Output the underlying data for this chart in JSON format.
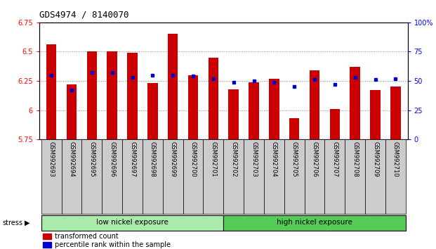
{
  "title": "GDS4974 / 8140070",
  "samples": [
    "GSM992693",
    "GSM992694",
    "GSM992695",
    "GSM992696",
    "GSM992697",
    "GSM992698",
    "GSM992699",
    "GSM992700",
    "GSM992701",
    "GSM992702",
    "GSM992703",
    "GSM992704",
    "GSM992705",
    "GSM992706",
    "GSM992707",
    "GSM992708",
    "GSM992709",
    "GSM992710"
  ],
  "red_values": [
    6.56,
    6.22,
    6.5,
    6.5,
    6.49,
    6.23,
    6.65,
    6.3,
    6.45,
    6.18,
    6.24,
    6.27,
    5.93,
    6.34,
    6.01,
    6.37,
    6.17,
    6.2
  ],
  "blue_values": [
    55,
    42,
    57,
    57,
    53,
    55,
    55,
    54,
    52,
    49,
    50,
    49,
    45,
    51,
    47,
    53,
    51,
    52
  ],
  "y_min": 5.75,
  "y_max": 6.75,
  "y_ticks": [
    5.75,
    6.0,
    6.25,
    6.5,
    6.75
  ],
  "y_tick_labels": [
    "5.75",
    "6",
    "6.25",
    "6.5",
    "6.75"
  ],
  "y2_ticks": [
    0,
    25,
    50,
    75,
    100
  ],
  "y2_tick_labels": [
    "0",
    "25",
    "50",
    "75",
    "100%"
  ],
  "bar_color": "#cc0000",
  "dot_color": "#0000cc",
  "bar_bottom": 5.75,
  "group1_label": "low nickel exposure",
  "group2_label": "high nickel exposure",
  "group1_count": 9,
  "group2_count": 9,
  "stress_label": "stress",
  "legend1": "transformed count",
  "legend2": "percentile rank within the sample",
  "group1_color": "#aaeaaa",
  "group2_color": "#55cc55",
  "xlabel_bg": "#cccccc",
  "dotted_line_color": "#888888",
  "bar_width": 0.5,
  "grid_ticks": [
    6.0,
    6.25,
    6.5
  ]
}
